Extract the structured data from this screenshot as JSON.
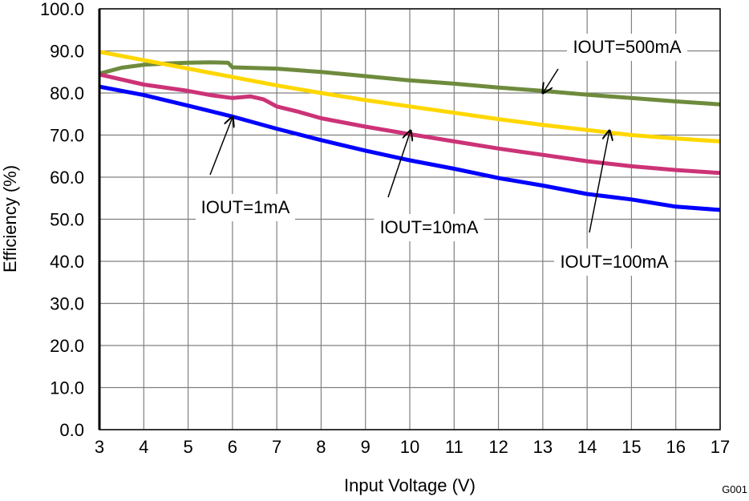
{
  "chart_data": {
    "type": "line",
    "xlabel": "Input Voltage (V)",
    "ylabel": "Efficiency (%)",
    "xlim": [
      3,
      17
    ],
    "ylim": [
      0,
      100
    ],
    "x_ticks": [
      "3",
      "4",
      "5",
      "6",
      "7",
      "8",
      "9",
      "10",
      "11",
      "12",
      "13",
      "14",
      "15",
      "16",
      "17"
    ],
    "y_ticks": [
      "0.0",
      "10.0",
      "20.0",
      "30.0",
      "40.0",
      "50.0",
      "60.0",
      "70.0",
      "80.0",
      "90.0",
      "100.0"
    ],
    "grid": true,
    "code": "G001",
    "series": [
      {
        "name": "IOUT=500mA",
        "color": "#6E8B3D",
        "x": [
          3,
          3.5,
          4,
          4.5,
          5,
          5.5,
          5.9,
          6,
          7,
          8,
          9,
          10,
          11,
          12,
          13,
          14,
          15,
          16,
          17
        ],
        "y": [
          84.6,
          86,
          86.7,
          87,
          87.2,
          87.3,
          87.2,
          86.1,
          85.8,
          85,
          84,
          83,
          82.2,
          81.3,
          80.5,
          79.6,
          78.8,
          78,
          77.3
        ]
      },
      {
        "name": "IOUT=100mA",
        "color": "#FFD700",
        "x": [
          3,
          4,
          5,
          6,
          7,
          8,
          9,
          10,
          11,
          12,
          13,
          14,
          15,
          16,
          17
        ],
        "y": [
          89.8,
          87.8,
          85.8,
          83.8,
          81.8,
          80,
          78.3,
          76.8,
          75.3,
          73.8,
          72.4,
          71.2,
          70,
          69.2,
          68.5
        ]
      },
      {
        "name": "IOUT=10mA",
        "color": "#CC3377",
        "x": [
          3,
          4,
          5,
          5.5,
          6,
          6.4,
          6.7,
          7,
          7.5,
          8,
          9,
          10,
          11,
          12,
          13,
          14,
          15,
          16,
          17
        ],
        "y": [
          84.4,
          82,
          80.5,
          79.5,
          78.8,
          79.2,
          78.5,
          76.8,
          75.5,
          74,
          72,
          70.2,
          68.5,
          66.8,
          65.3,
          63.8,
          62.6,
          61.7,
          61
        ]
      },
      {
        "name": "IOUT=1mA",
        "color": "#0000FF",
        "x": [
          3,
          4,
          5,
          6,
          7,
          8,
          9,
          10,
          11,
          12,
          13,
          14,
          15,
          16,
          17
        ],
        "y": [
          81.5,
          79.5,
          77,
          74.4,
          71.5,
          68.8,
          66.3,
          64,
          62,
          59.8,
          58,
          56,
          54.7,
          53,
          52.2
        ]
      }
    ],
    "annotations": [
      {
        "text": "IOUT=1mA",
        "series": "IOUT=1mA"
      },
      {
        "text": "IOUT=10mA",
        "series": "IOUT=10mA"
      },
      {
        "text": "IOUT=100mA",
        "series": "IOUT=100mA"
      },
      {
        "text": "IOUT=500mA",
        "series": "IOUT=500mA"
      }
    ]
  }
}
